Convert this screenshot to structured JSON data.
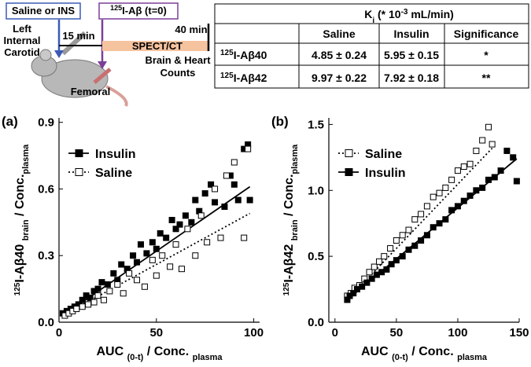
{
  "diagram": {
    "box1": "Saline or INS",
    "box2": {
      "sup": "125",
      "text": "I-Aβ (t=0)"
    },
    "site": [
      "Left",
      "Internal",
      "Carotid"
    ],
    "time1": "15 min",
    "time2": "40 min",
    "bar": "SPECT/CT",
    "counts": [
      "Brain & Heart",
      "Counts"
    ],
    "femoral": "Femoral"
  },
  "table": {
    "title": {
      "main": "K",
      "sub": "i",
      "rest": " (* 10",
      "sup": "-3",
      "end": " mL/min)"
    },
    "columns": [
      "Saline",
      "Insulin",
      "Significance"
    ],
    "rows": [
      {
        "label": {
          "sup": "125",
          "text": "I-Aβ40"
        },
        "cells": [
          "4.85 ± 0.24",
          "5.95 ± 0.15",
          "*"
        ]
      },
      {
        "label": {
          "sup": "125",
          "text": "I-Aβ42"
        },
        "cells": [
          "9.97 ± 0.22",
          "7.92 ± 0.18",
          "**"
        ]
      }
    ]
  },
  "chart_data": [
    {
      "type": "scatter",
      "panel_label": "(a)",
      "xlabel": {
        "main": "AUC ",
        "sub": "(0-t)",
        "rest": " / Conc. ",
        "sub2": "plasma"
      },
      "ylabel": {
        "sup": "125",
        "main": "I-Aβ40 ",
        "sub": "brain",
        "rest": " / Conc.",
        "sub2": "plasma"
      },
      "xlim": [
        0,
        103
      ],
      "ylim": [
        0,
        0.92
      ],
      "xticks": [
        0,
        50,
        100
      ],
      "yticks": [
        {
          "value": 0,
          "label": "0.0"
        },
        0.3,
        0.6,
        0.9
      ],
      "legend": "upper left",
      "series": [
        {
          "name": "Insulin",
          "color": "#000000",
          "marker": "filled",
          "line": "solid",
          "x": [
            2,
            4,
            6,
            8,
            10,
            12,
            14,
            16,
            18,
            20,
            22,
            25,
            28,
            30,
            32,
            35,
            38,
            40,
            42,
            45,
            48,
            50,
            52,
            55,
            58,
            60,
            62,
            65,
            68,
            70,
            72,
            75,
            78,
            80,
            85,
            88,
            90,
            92,
            95,
            97,
            98
          ],
          "values": [
            0.04,
            0.05,
            0.06,
            0.07,
            0.08,
            0.1,
            0.12,
            0.11,
            0.14,
            0.15,
            0.18,
            0.17,
            0.22,
            0.19,
            0.26,
            0.24,
            0.3,
            0.27,
            0.35,
            0.31,
            0.36,
            0.33,
            0.4,
            0.38,
            0.46,
            0.42,
            0.44,
            0.48,
            0.45,
            0.55,
            0.5,
            0.58,
            0.62,
            0.54,
            0.52,
            0.66,
            0.62,
            0.55,
            0.78,
            0.8,
            0.55
          ],
          "fit_x": [
            2,
            98
          ],
          "fit_values": [
            0.03,
            0.61
          ]
        },
        {
          "name": "Saline",
          "color": "#000000",
          "marker": "open",
          "line": "dotted",
          "x": [
            3,
            5,
            7,
            9,
            12,
            15,
            18,
            20,
            23,
            26,
            30,
            33,
            36,
            40,
            44,
            48,
            50,
            53,
            57,
            60,
            63,
            66,
            70,
            73,
            76,
            80,
            83,
            86,
            90,
            95,
            97
          ],
          "values": [
            0.03,
            0.04,
            0.05,
            0.06,
            0.07,
            0.08,
            0.09,
            0.12,
            0.1,
            0.14,
            0.17,
            0.13,
            0.22,
            0.19,
            0.16,
            0.28,
            0.21,
            0.3,
            0.25,
            0.35,
            0.24,
            0.42,
            0.3,
            0.48,
            0.36,
            0.6,
            0.38,
            0.66,
            0.72,
            0.38,
            0.78
          ],
          "fit_x": [
            2,
            98
          ],
          "fit_values": [
            0.03,
            0.49
          ]
        }
      ]
    },
    {
      "type": "scatter",
      "panel_label": "(b)",
      "xlabel": {
        "main": "AUC ",
        "sub": "(0-t)",
        "rest": " / Conc. ",
        "sub2": "plasma"
      },
      "ylabel": {
        "sup": "125",
        "main": "I-Aβ42 ",
        "sub": "brain",
        "rest": " / Conc.",
        "sub2": "plasma"
      },
      "xlim": [
        -5,
        150
      ],
      "ylim": [
        0,
        1.55
      ],
      "xticks": [
        0,
        50,
        100,
        150
      ],
      "yticks": [
        {
          "value": 0,
          "label": "0.0"
        },
        0.5,
        {
          "value": 1,
          "label": "1.0"
        },
        1.5
      ],
      "legend": "upper left",
      "series": [
        {
          "name": "Saline",
          "color": "#000000",
          "marker": "open",
          "line": "dotted",
          "x": [
            10,
            13,
            16,
            20,
            24,
            28,
            32,
            36,
            40,
            45,
            50,
            55,
            60,
            65,
            70,
            75,
            80,
            85,
            90,
            95,
            100,
            105,
            110,
            115,
            120,
            125,
            128
          ],
          "values": [
            0.2,
            0.22,
            0.26,
            0.28,
            0.33,
            0.38,
            0.42,
            0.46,
            0.5,
            0.56,
            0.62,
            0.66,
            0.7,
            0.78,
            0.82,
            0.88,
            0.95,
            0.98,
            1.02,
            1.08,
            1.15,
            1.18,
            1.2,
            1.3,
            1.38,
            1.48,
            1.35
          ],
          "fit_x": [
            10,
            128
          ],
          "fit_values": [
            0.17,
            1.32
          ]
        },
        {
          "name": "Insulin",
          "color": "#000000",
          "marker": "filled",
          "line": "solid",
          "x": [
            10,
            12,
            15,
            18,
            22,
            26,
            30,
            34,
            38,
            42,
            46,
            50,
            55,
            60,
            65,
            70,
            75,
            80,
            85,
            90,
            95,
            100,
            105,
            110,
            115,
            120,
            125,
            130,
            135,
            140,
            145,
            148
          ],
          "values": [
            0.17,
            0.2,
            0.22,
            0.25,
            0.27,
            0.3,
            0.33,
            0.36,
            0.38,
            0.4,
            0.44,
            0.47,
            0.5,
            0.55,
            0.58,
            0.62,
            0.66,
            0.72,
            0.75,
            0.78,
            0.85,
            0.88,
            0.92,
            0.96,
            1.0,
            1.02,
            1.08,
            1.1,
            1.15,
            1.3,
            1.25,
            1.07
          ],
          "fit_x": [
            10,
            148
          ],
          "fit_values": [
            0.17,
            1.24
          ]
        }
      ]
    }
  ]
}
